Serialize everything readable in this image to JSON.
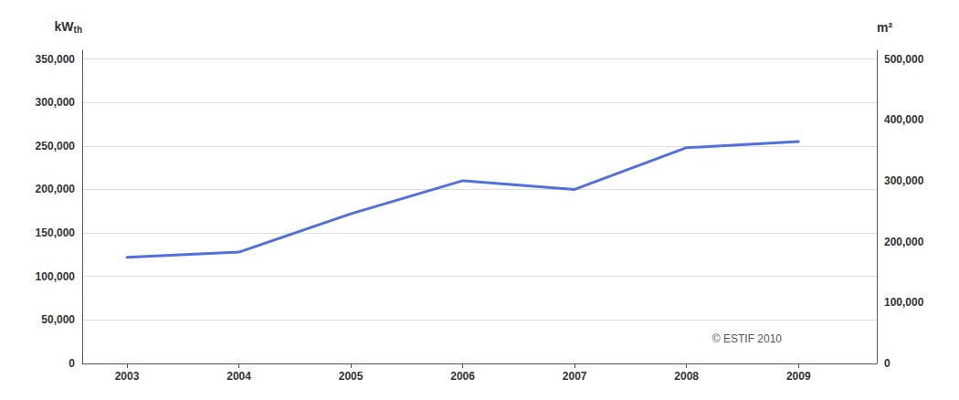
{
  "chart_data": {
    "type": "line",
    "x": [
      2003,
      2004,
      2005,
      2006,
      2007,
      2008,
      2009
    ],
    "values": [
      122000,
      128000,
      172000,
      210000,
      200000,
      248000,
      255000
    ],
    "xlim": [
      2002.6,
      2009.7
    ],
    "xticks": [
      2003,
      2004,
      2005,
      2006,
      2007,
      2008,
      2009
    ],
    "ylim": [
      0,
      360000
    ],
    "yticks": [
      0,
      {
        "value": 50000,
        "label": "50,000"
      },
      {
        "value": 100000,
        "label": "100,000"
      },
      {
        "value": 150000,
        "label": "150,000"
      },
      {
        "value": 200000,
        "label": "200,000"
      },
      {
        "value": 250000,
        "label": "250,000"
      },
      {
        "value": 300000,
        "label": "300,000"
      },
      {
        "value": 350000,
        "label": "350,000"
      }
    ],
    "y2lim": [
      0,
      514286
    ],
    "y2ticks": [
      0,
      {
        "value": 100000,
        "label": "100,000"
      },
      {
        "value": 200000,
        "label": "200,000"
      },
      {
        "value": 300000,
        "label": "300,000"
      },
      {
        "value": 400000,
        "label": "400,000"
      },
      {
        "value": 500000,
        "label": "500,000"
      }
    ],
    "ylabel": "kW",
    "ylabel_sub": "th",
    "y2label": "m²",
    "annotation": "© ESTIF 2010",
    "grid": true
  }
}
